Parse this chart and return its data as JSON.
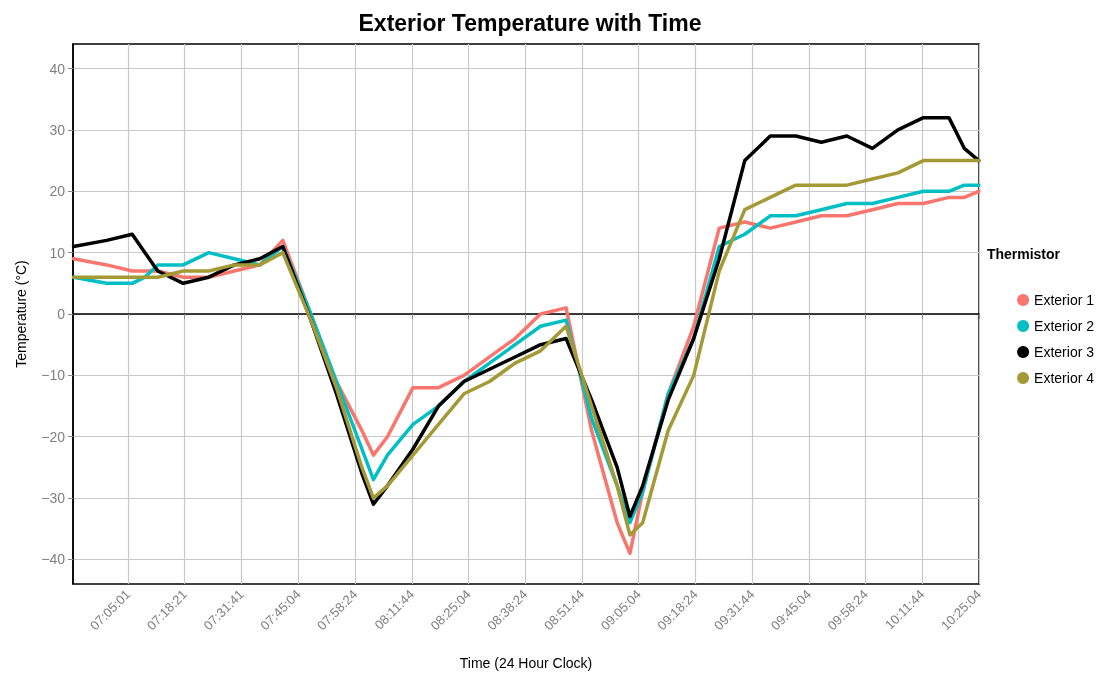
{
  "chart_data": {
    "type": "line",
    "title": "Exterior Temperature with Time",
    "xlabel": "Time (24 Hour Clock)",
    "ylabel": "Temperature (°C)",
    "legend_title": "Thermistor",
    "legend": "right",
    "grid": true,
    "marker": "none",
    "line_style": "solid",
    "x": [
      6.87,
      7.0,
      7.1,
      7.15,
      7.2,
      7.3,
      7.4,
      7.5,
      7.6,
      7.69,
      7.8,
      7.9,
      8.0,
      8.045,
      8.1,
      8.2,
      8.3,
      8.4,
      8.5,
      8.6,
      8.7,
      8.8,
      8.9,
      9.0,
      9.05,
      9.1,
      9.2,
      9.3,
      9.4,
      9.5,
      9.6,
      9.7,
      9.8,
      9.9,
      10.0,
      10.1,
      10.2,
      10.3,
      10.36,
      10.417
    ],
    "xlim": [
      6.868,
      10.417778
    ],
    "xticks": [
      {
        "value": 7.083611,
        "label": "07:05:01"
      },
      {
        "value": 7.305833,
        "label": "07:18:21"
      },
      {
        "value": 7.528056,
        "label": "07:31:41"
      },
      {
        "value": 7.751111,
        "label": "07:45:04"
      },
      {
        "value": 7.973333,
        "label": "07:58:24"
      },
      {
        "value": 8.195556,
        "label": "08:11:44"
      },
      {
        "value": 8.417778,
        "label": "08:25:04"
      },
      {
        "value": 8.64,
        "label": "08:38:24"
      },
      {
        "value": 8.862222,
        "label": "08:51:44"
      },
      {
        "value": 9.084444,
        "label": "09:05:04"
      },
      {
        "value": 9.306667,
        "label": "09:18:24"
      },
      {
        "value": 9.528889,
        "label": "09:31:44"
      },
      {
        "value": 9.751111,
        "label": "09:45:04"
      },
      {
        "value": 9.973333,
        "label": "09:58:24"
      },
      {
        "value": 10.195556,
        "label": "10:11:44"
      },
      {
        "value": 10.417778,
        "label": "10:25:04"
      }
    ],
    "ylim": [
      -44,
      44
    ],
    "yticks": [
      -40,
      -30,
      -20,
      -10,
      0,
      10,
      20,
      30,
      40
    ],
    "series": [
      {
        "name": "Exterior 1",
        "color": "#f8766d",
        "values": [
          9,
          8,
          7,
          7,
          7,
          6,
          6,
          7,
          8,
          12,
          0,
          -11,
          -19,
          -23,
          -20,
          -12,
          -12,
          -10,
          -7,
          -4,
          0,
          1,
          -19,
          -34,
          -39,
          -29,
          -13,
          -2,
          14,
          15,
          14,
          15,
          16,
          16,
          17,
          18,
          18,
          19,
          19,
          20
        ]
      },
      {
        "name": "Exterior 2",
        "color": "#00bfc4",
        "values": [
          6,
          5,
          5,
          6,
          8,
          8,
          10,
          9,
          8,
          11,
          0,
          -11,
          -22,
          -27,
          -23,
          -18,
          -15,
          -11,
          -8,
          -5,
          -2,
          -1,
          -17,
          -28,
          -34,
          -29,
          -13,
          -4,
          11,
          13,
          16,
          16,
          17,
          18,
          18,
          19,
          20,
          20,
          21,
          21
        ]
      },
      {
        "name": "Exterior 3",
        "color": "#000000",
        "values": [
          11,
          12,
          13,
          10,
          7,
          5,
          6,
          8,
          9,
          11,
          -1,
          -13,
          -26,
          -31,
          -28,
          -22,
          -15,
          -11,
          -9,
          -7,
          -5,
          -4,
          -14,
          -25,
          -33,
          -28,
          -14,
          -4,
          9,
          25,
          29,
          29,
          28,
          29,
          27,
          30,
          32,
          32,
          27,
          25
        ]
      },
      {
        "name": "Exterior 4",
        "color": "#a39a35",
        "values": [
          6,
          6,
          6,
          6,
          6,
          7,
          7,
          8,
          8,
          10,
          -1,
          -12,
          -25,
          -30,
          -28,
          -23,
          -18,
          -13,
          -11,
          -8,
          -6,
          -2,
          -15,
          -28,
          -36,
          -34,
          -19,
          -10,
          7,
          17,
          19,
          21,
          21,
          21,
          22,
          23,
          25,
          25,
          25,
          25
        ]
      }
    ]
  }
}
